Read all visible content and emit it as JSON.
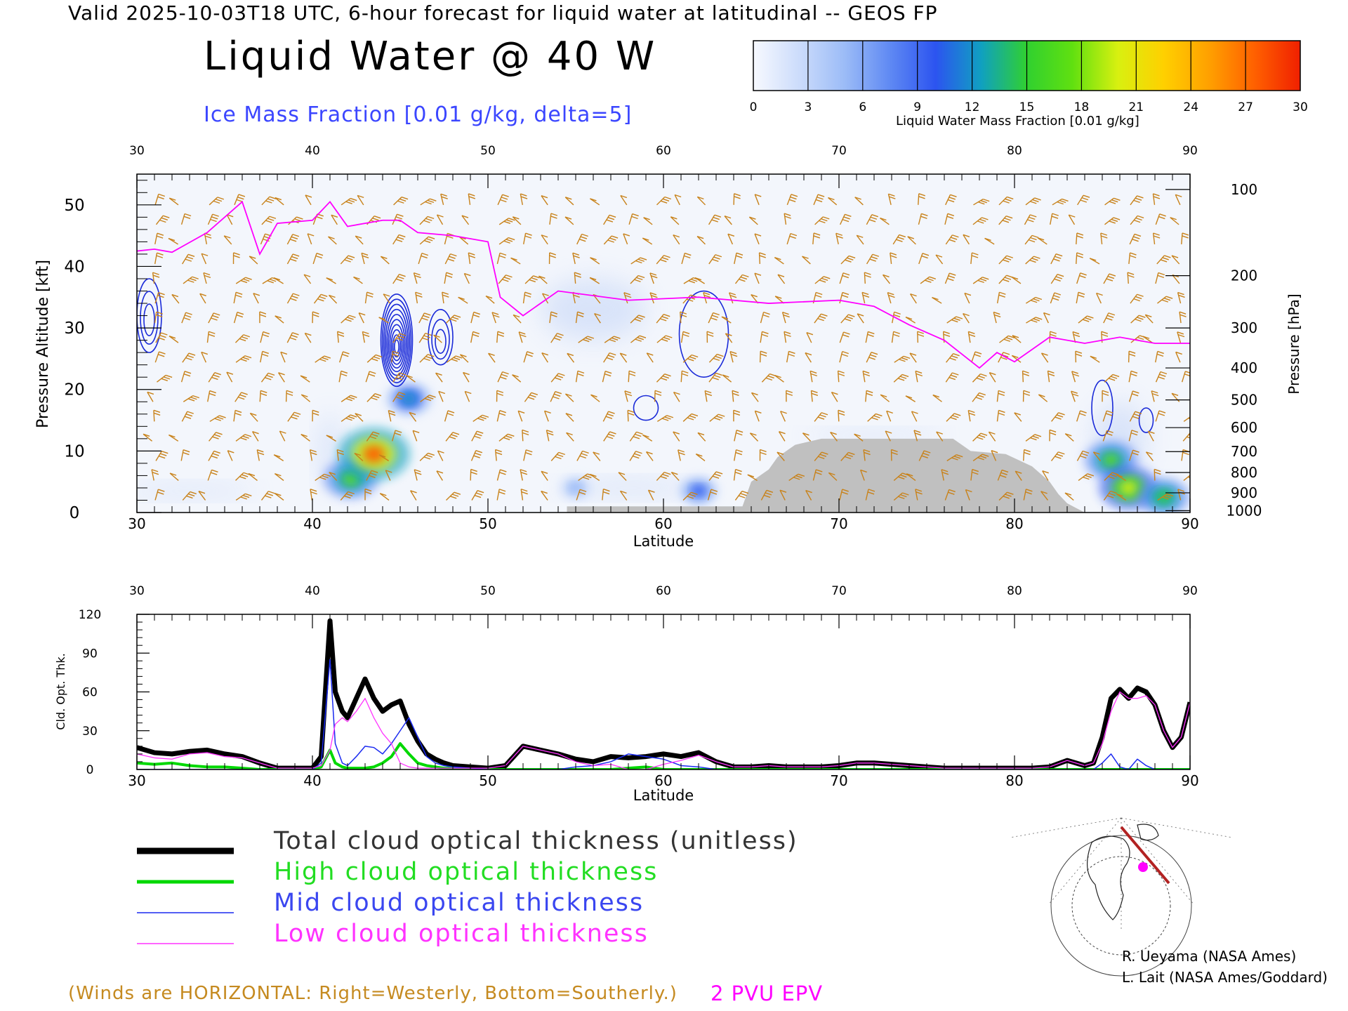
{
  "header": {
    "line": "Valid 2025-10-03T18 UTC, 6-hour forecast for liquid water at latitudinal -- GEOS FP",
    "title": "Liquid Water @ 40 W",
    "subtitle": "Ice Mass Fraction [0.01 g/kg, delta=5]"
  },
  "colorbar": {
    "label": "Liquid Water Mass Fraction [0.01 g/kg]",
    "ticks": [
      "0",
      "3",
      "6",
      "9",
      "12",
      "15",
      "18",
      "21",
      "24",
      "27",
      "30"
    ],
    "colors": [
      "#f7f9ff",
      "#ccdcfb",
      "#9cbcf7",
      "#5f89f3",
      "#2c54f0",
      "#10a0c0",
      "#30d030",
      "#60e010",
      "#d8f010",
      "#ffd000",
      "#ffa000",
      "#ff6000",
      "#f02000"
    ]
  },
  "chart_data": [
    {
      "type": "heatmap",
      "title": "Liquid Water @ 40 W",
      "xlabel": "Latitude",
      "ylabel": "Pressure Altitude [kft]",
      "ylabel_right": "Pressure [hPa]",
      "xlim": [
        30,
        90
      ],
      "ylim": [
        0,
        55
      ],
      "x_ticks": [
        "30",
        "40",
        "50",
        "60",
        "70",
        "80",
        "90"
      ],
      "y_ticks": [
        "0",
        "10",
        "20",
        "30",
        "40",
        "50"
      ],
      "pressure_ticks": [
        {
          "label": "100",
          "kft": 52.5
        },
        {
          "label": "200",
          "kft": 38.5
        },
        {
          "label": "300",
          "kft": 30.0
        },
        {
          "label": "400",
          "kft": 23.5
        },
        {
          "label": "500",
          "kft": 18.3
        },
        {
          "label": "600",
          "kft": 13.8
        },
        {
          "label": "700",
          "kft": 9.9
        },
        {
          "label": "800",
          "kft": 6.5
        },
        {
          "label": "900",
          "kft": 3.2
        },
        {
          "label": "1000",
          "kft": 0.3
        }
      ],
      "liquid_water_blobs": [
        {
          "lat": 42.2,
          "kft": 5.5,
          "value": 18
        },
        {
          "lat": 43.5,
          "kft": 9.5,
          "value": 27
        },
        {
          "lat": 45.5,
          "kft": 18.5,
          "value": 13
        },
        {
          "lat": 85.5,
          "kft": 8.5,
          "value": 17
        },
        {
          "lat": 86.5,
          "kft": 4.0,
          "value": 20
        },
        {
          "lat": 88.5,
          "kft": 2.5,
          "value": 16
        },
        {
          "lat": 62.0,
          "kft": 3.5,
          "value": 9
        },
        {
          "lat": 55.0,
          "kft": 4.0,
          "value": 6
        }
      ],
      "ice_contours": [
        {
          "lat": 44.8,
          "kft": 28.0,
          "rx": 0.9,
          "ry": 7.5,
          "levels": 10
        },
        {
          "lat": 47.3,
          "kft": 28.5,
          "rx": 0.7,
          "ry": 4.5,
          "levels": 3
        },
        {
          "lat": 30.7,
          "kft": 32.0,
          "rx": 0.7,
          "ry": 6.0,
          "levels": 3
        },
        {
          "lat": 59.0,
          "kft": 17.0,
          "rx": 0.7,
          "ry": 2.0,
          "levels": 1
        },
        {
          "lat": 62.3,
          "kft": 29.0,
          "rx": 1.4,
          "ry": 7.0,
          "levels": 1
        },
        {
          "lat": 85.0,
          "kft": 17.0,
          "rx": 0.6,
          "ry": 4.5,
          "levels": 1
        },
        {
          "lat": 87.5,
          "kft": 15.0,
          "rx": 0.4,
          "ry": 2.0,
          "levels": 1
        }
      ],
      "epv_2pvu": {
        "lat": [
          30,
          31,
          32,
          34,
          36,
          37,
          38,
          40,
          41,
          42,
          44,
          45,
          46,
          48,
          50,
          50.7,
          52,
          54,
          58,
          62,
          66,
          70,
          72,
          74,
          76,
          78,
          79,
          80,
          82,
          84,
          86,
          88,
          90
        ],
        "kft": [
          42.5,
          42.8,
          42.3,
          45.5,
          50.5,
          42.0,
          47.0,
          47.5,
          50.5,
          46.5,
          47.5,
          47.5,
          45.5,
          45.0,
          44.0,
          35.0,
          32.0,
          36.0,
          34.5,
          35.0,
          34.0,
          34.5,
          33.5,
          30.5,
          28.0,
          23.5,
          26.0,
          24.5,
          28.5,
          27.5,
          28.5,
          27.5,
          27.5
        ]
      },
      "terrain": [
        [
          54.5,
          1
        ],
        [
          64.5,
          1
        ],
        [
          65,
          5
        ],
        [
          66,
          7
        ],
        [
          66.5,
          9
        ],
        [
          67.5,
          11
        ],
        [
          69,
          12
        ],
        [
          76.5,
          12
        ],
        [
          77.5,
          10
        ],
        [
          79.5,
          9.5
        ],
        [
          81,
          7.5
        ],
        [
          82,
          5
        ],
        [
          82.5,
          3
        ],
        [
          83,
          1.5
        ],
        [
          84,
          0
        ],
        [
          54.5,
          0
        ]
      ]
    },
    {
      "type": "line",
      "xlabel": "Latitude",
      "ylabel": "Cld. Opt. Thk.",
      "xlim": [
        30,
        90
      ],
      "ylim": [
        0,
        120
      ],
      "x_ticks": [
        "30",
        "40",
        "50",
        "60",
        "70",
        "80",
        "90"
      ],
      "y_ticks": [
        "0",
        "30",
        "60",
        "90",
        "120"
      ],
      "x": [
        30,
        31,
        32,
        33,
        34,
        35,
        36,
        37,
        38,
        39,
        40,
        40.5,
        41,
        41.3,
        41.7,
        42,
        42.5,
        43,
        43.5,
        44,
        44.5,
        45,
        45.5,
        46,
        46.5,
        47,
        47.5,
        48,
        49,
        50,
        51,
        52,
        53,
        54,
        55,
        56,
        57,
        58,
        59,
        60,
        61,
        62,
        63,
        64,
        65,
        66,
        67,
        68,
        69,
        70,
        71,
        72,
        73,
        74,
        75,
        76,
        77,
        78,
        79,
        80,
        81,
        82,
        83,
        84,
        84.5,
        85,
        85.5,
        86,
        86.5,
        87,
        87.5,
        88,
        88.5,
        89,
        89.5,
        90
      ],
      "series": [
        {
          "name": "Total cloud optical thickness (unitless)",
          "color": "#000000",
          "values": [
            17,
            13,
            12,
            14,
            15,
            12,
            10,
            5,
            1,
            1,
            1,
            10,
            115,
            60,
            45,
            40,
            55,
            70,
            55,
            45,
            50,
            53,
            35,
            22,
            12,
            8,
            5,
            3,
            2,
            1,
            3,
            18,
            15,
            12,
            8,
            6,
            10,
            9,
            10,
            12,
            10,
            13,
            6,
            2,
            2,
            3,
            2,
            2,
            2,
            3,
            5,
            5,
            4,
            3,
            2,
            1,
            1,
            1,
            1,
            1,
            1,
            2,
            7,
            3,
            5,
            25,
            55,
            62,
            55,
            63,
            60,
            50,
            30,
            17,
            25,
            52
          ]
        },
        {
          "name": "High cloud optical thickness",
          "color": "#00d800",
          "values": [
            5,
            4,
            5,
            3,
            2,
            2,
            1,
            0,
            0,
            0,
            0,
            2,
            15,
            5,
            2,
            1,
            1,
            1,
            2,
            5,
            10,
            20,
            12,
            5,
            3,
            2,
            1,
            1,
            0,
            0,
            0,
            0,
            0,
            0,
            0,
            0,
            0,
            1,
            2,
            0,
            0,
            0,
            0,
            0,
            0,
            0,
            0,
            0,
            0,
            0,
            0,
            0,
            0,
            0,
            0,
            0,
            0,
            0,
            0,
            0,
            0,
            0,
            0,
            0,
            0,
            0,
            0,
            0,
            0,
            0,
            0,
            0,
            0,
            0,
            0,
            0
          ]
        },
        {
          "name": "Mid cloud optical thickness",
          "color": "#1a2af0",
          "values": [
            0,
            0,
            0,
            0,
            0,
            0,
            0,
            0,
            0,
            0,
            0,
            5,
            85,
            20,
            5,
            3,
            10,
            18,
            17,
            12,
            20,
            30,
            40,
            25,
            10,
            5,
            3,
            2,
            1,
            0,
            0,
            0,
            0,
            0,
            2,
            3,
            6,
            12,
            10,
            8,
            3,
            2,
            0,
            0,
            0,
            0,
            0,
            0,
            0,
            0,
            0,
            0,
            0,
            0,
            0,
            0,
            0,
            0,
            0,
            0,
            0,
            0,
            0,
            0,
            0,
            5,
            12,
            2,
            0,
            8,
            3,
            0,
            0,
            0,
            0,
            0
          ]
        },
        {
          "name": "Low cloud optical thickness",
          "color": "#ff33ff",
          "values": [
            12,
            9,
            8,
            12,
            13,
            10,
            9,
            5,
            1,
            1,
            1,
            3,
            15,
            35,
            40,
            37,
            45,
            55,
            40,
            28,
            20,
            5,
            2,
            1,
            1,
            1,
            1,
            1,
            1,
            1,
            3,
            18,
            15,
            12,
            6,
            3,
            4,
            0,
            0,
            4,
            7,
            11,
            6,
            2,
            2,
            3,
            2,
            2,
            2,
            3,
            5,
            5,
            4,
            3,
            2,
            1,
            1,
            1,
            1,
            1,
            1,
            2,
            7,
            3,
            5,
            20,
            45,
            60,
            55,
            55,
            57,
            50,
            30,
            17,
            25,
            52
          ]
        }
      ]
    }
  ],
  "legend": {
    "items": [
      {
        "label": "Total cloud optical thickness (unitless)",
        "color": "#000000",
        "text_color": "#333333"
      },
      {
        "label": "High cloud optical thickness",
        "color": "#00d800",
        "text_color": "#22dd22"
      },
      {
        "label": "Mid cloud optical thickness",
        "color": "#1a2af0",
        "text_color": "#3a46f0"
      },
      {
        "label": "Low cloud optical thickness",
        "color": "#ff33ff",
        "text_color": "#ff33ff"
      }
    ]
  },
  "footer": {
    "note": "(Winds are HORIZONTAL: Right=Westerly, Bottom=Southerly.)",
    "epv": "2 PVU EPV",
    "credit1": "R. Ueyama (NASA Ames)",
    "credit2": "L. Lait (NASA Ames/Goddard)"
  }
}
